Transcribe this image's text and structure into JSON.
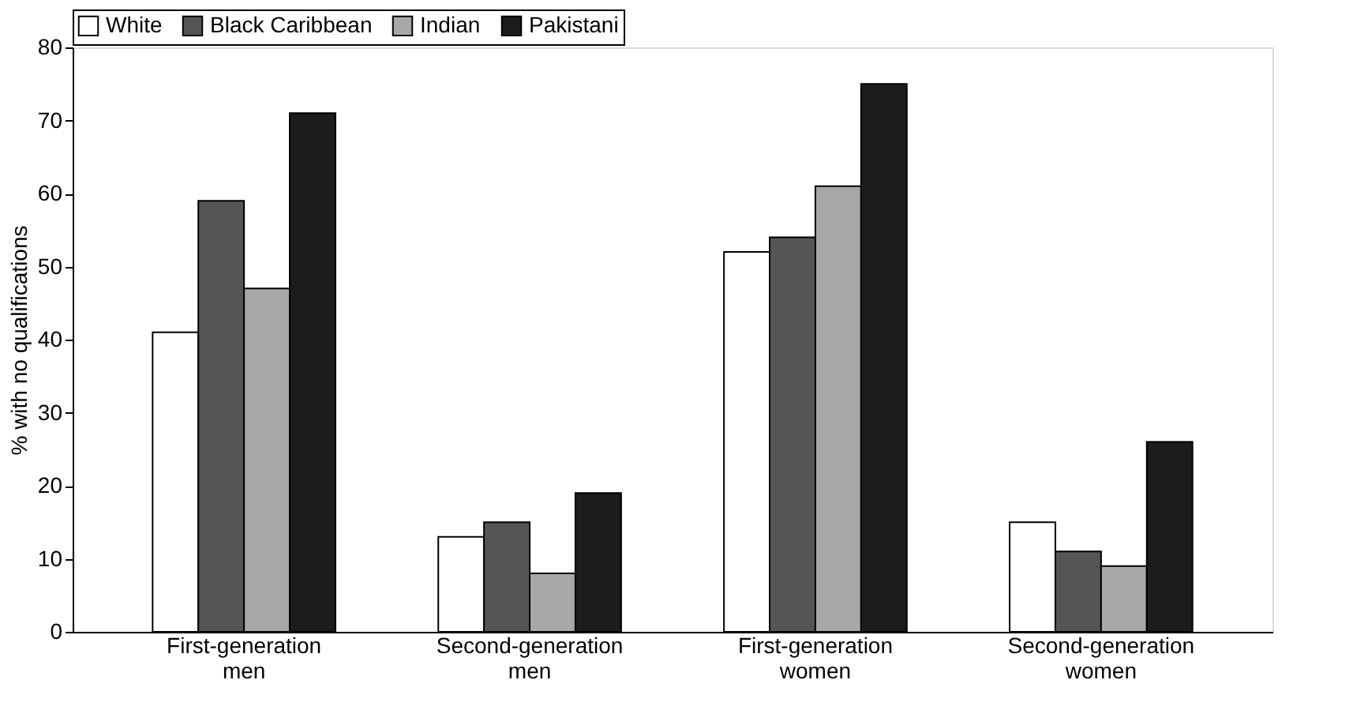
{
  "chart_data": {
    "type": "bar",
    "ylabel": "% with no qualifications",
    "categories": [
      "First-generation men",
      "Second-generation men",
      "First-generation women",
      "Second-generation women"
    ],
    "series": [
      {
        "name": "White",
        "color": "#ffffff",
        "values": [
          41,
          13,
          52,
          15
        ]
      },
      {
        "name": "Black Caribbean",
        "color": "#555555",
        "values": [
          59,
          15,
          54,
          11
        ]
      },
      {
        "name": "Indian",
        "color": "#a8a8a8",
        "values": [
          47,
          8,
          61,
          9
        ]
      },
      {
        "name": "Pakistani",
        "color": "#1c1c1c",
        "values": [
          71,
          19,
          75,
          26
        ]
      }
    ],
    "ylim": [
      0,
      80
    ],
    "yticks": [
      0,
      10,
      20,
      30,
      40,
      50,
      60,
      70,
      80
    ],
    "grid": false,
    "legend": "top"
  }
}
